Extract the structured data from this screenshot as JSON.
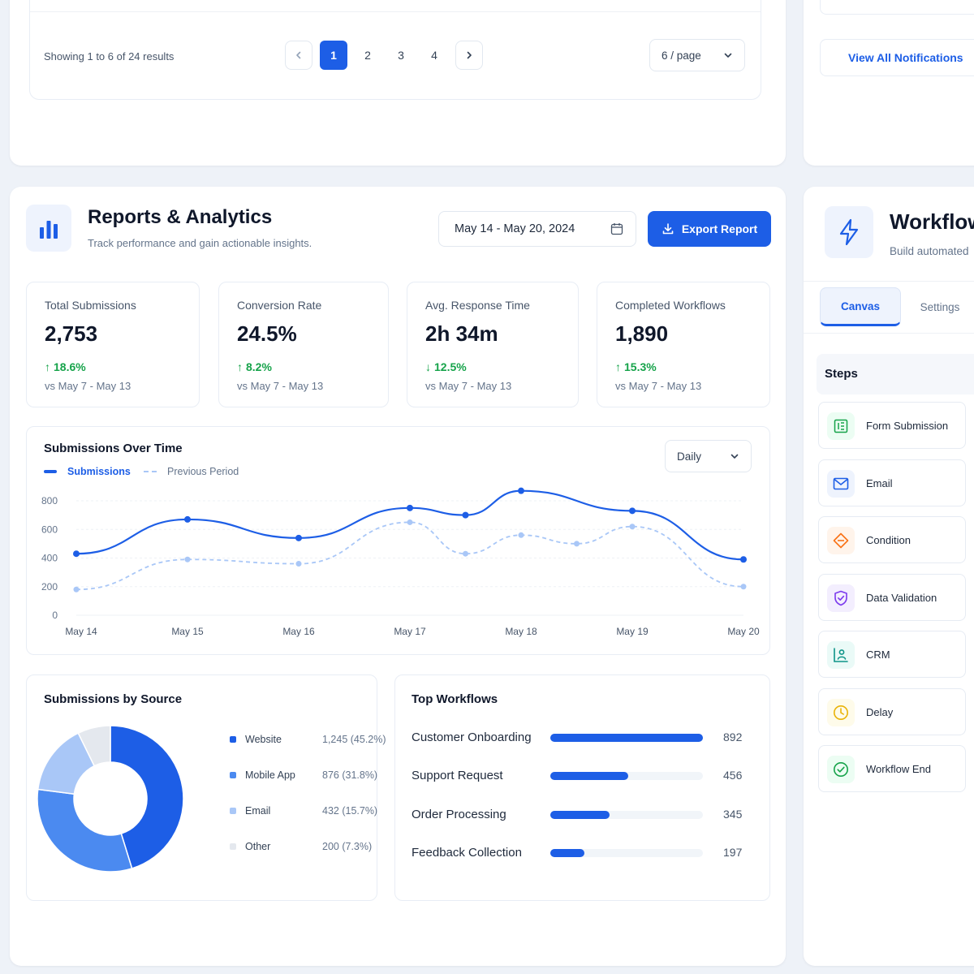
{
  "pagination": {
    "summary": "Showing 1 to 6 of 24 results",
    "prev_icon": "chevron-left-icon",
    "next_icon": "chevron-right-icon",
    "pages": [
      "1",
      "2",
      "3",
      "4"
    ],
    "current_page": "1",
    "page_size": "6 / page"
  },
  "notifications": {
    "view_all": "View All Notifications"
  },
  "reports": {
    "title": "Reports & Analytics",
    "subtitle": "Track performance and gain actionable insights.",
    "date_range": "May 14 - May 20, 2024",
    "export_label": "Export Report",
    "accent": "#1d5ee6",
    "kpis": [
      {
        "title": "Total Submissions",
        "value": "2,753",
        "delta": "18.6%",
        "direction": "up",
        "compare": "vs May 7 - May 13"
      },
      {
        "title": "Conversion Rate",
        "value": "24.5%",
        "delta": "8.2%",
        "direction": "up",
        "compare": "vs May 7 - May 13"
      },
      {
        "title": "Avg. Response Time",
        "value": "2h 34m",
        "delta": "12.5%",
        "direction": "down",
        "compare": "vs May 7 - May 13"
      },
      {
        "title": "Completed Workflows",
        "value": "1,890",
        "delta": "15.3%",
        "direction": "up",
        "compare": "vs May 7 - May 13"
      }
    ],
    "line_chart": {
      "title": "Submissions Over Time",
      "interval": "Daily",
      "legend": [
        "Submissions",
        "Previous Period"
      ]
    },
    "source_chart": {
      "title": "Submissions by Source",
      "rows": [
        {
          "label": "Website",
          "value": "1,245 (45.2%)",
          "color": "#1d5ee6"
        },
        {
          "label": "Mobile App",
          "value": "876 (31.8%)",
          "color": "#4b8af0"
        },
        {
          "label": "Email",
          "value": "432 (15.7%)",
          "color": "#a9c7f7"
        },
        {
          "label": "Other",
          "value": "200 (7.3%)",
          "color": "#e4e8ee"
        }
      ]
    },
    "top_workflows": {
      "title": "Top Workflows",
      "rows": [
        {
          "label": "Customer Onboarding",
          "value": "892"
        },
        {
          "label": "Support Request",
          "value": "456"
        },
        {
          "label": "Order Processing",
          "value": "345"
        },
        {
          "label": "Feedback Collection",
          "value": "197"
        }
      ]
    }
  },
  "workflow": {
    "title": "Workflow",
    "subtitle": "Build automated",
    "tabs": [
      "Canvas",
      "Settings"
    ],
    "active_tab": "Canvas",
    "steps_heading": "Steps",
    "steps": [
      {
        "label": "Form Submission",
        "icon": "form-icon",
        "color": "#16a34a"
      },
      {
        "label": "Email",
        "icon": "mail-icon",
        "color": "#1d5ee6"
      },
      {
        "label": "Condition",
        "icon": "diamond-icon",
        "color": "#f97316"
      },
      {
        "label": "Data Validation",
        "icon": "shield-icon",
        "color": "#7c3aed"
      },
      {
        "label": "CRM",
        "icon": "contact-icon",
        "color": "#0d9488"
      },
      {
        "label": "Delay",
        "icon": "clock-icon",
        "color": "#eab308"
      },
      {
        "label": "Workflow End",
        "icon": "check-circle-icon",
        "color": "#16a34a"
      }
    ]
  },
  "chart_data": [
    {
      "type": "line",
      "title": "Submissions Over Time",
      "x": [
        "May 14",
        "May 15",
        "May 16",
        "May 17",
        "May 18",
        "May 19",
        "May 20"
      ],
      "series": [
        {
          "name": "Submissions",
          "values": [
            430,
            670,
            540,
            750,
            700,
            870,
            730,
            390
          ],
          "x": [
            "May 14",
            "May 15",
            "May 16",
            "May 17",
            "May 17-18",
            "May 18",
            "May 19",
            "May 20"
          ],
          "color": "#1d5ee6"
        },
        {
          "name": "Previous Period",
          "values": [
            180,
            390,
            360,
            650,
            430,
            560,
            500,
            620,
            200
          ],
          "x": [
            "May 14",
            "May 15",
            "May 16",
            "May 17",
            "May 17-18",
            "May 18",
            "May 18-19",
            "May 19",
            "May 20"
          ],
          "color": "#a9c7f7"
        }
      ],
      "ylim": [
        0,
        800
      ],
      "yticks": [
        "800",
        "600",
        "400",
        "200",
        "0"
      ],
      "grid": true,
      "legend": "top-left"
    },
    {
      "type": "pie",
      "title": "Submissions by Source",
      "categories": [
        "Website",
        "Mobile App",
        "Email",
        "Other"
      ],
      "values": [
        1245,
        876,
        432,
        200
      ],
      "donut": true
    },
    {
      "type": "bar",
      "title": "Top Workflows",
      "orientation": "horizontal",
      "categories": [
        "Customer Onboarding",
        "Support Request",
        "Order Processing",
        "Feedback Collection"
      ],
      "values": [
        892,
        456,
        345,
        197
      ]
    }
  ]
}
